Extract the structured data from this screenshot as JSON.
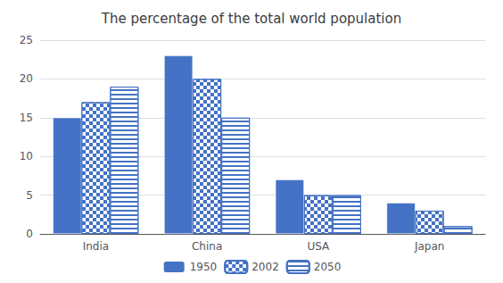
{
  "chart_data": {
    "type": "bar",
    "title": "The percentage of the total world population",
    "categories": [
      "India",
      "China",
      "USA",
      "Japan"
    ],
    "series": [
      {
        "name": "1950",
        "color": "#4472C4",
        "values": [
          15,
          23,
          7,
          4
        ]
      },
      {
        "name": "2002",
        "color": "#4472C4",
        "values": [
          17,
          20,
          5,
          3
        ]
      },
      {
        "name": "2050",
        "color": "#4472C4",
        "values": [
          19,
          15,
          5,
          1
        ]
      }
    ],
    "ylim": [
      0,
      25
    ],
    "yticks": [
      0,
      5,
      10,
      15,
      20,
      25
    ],
    "grid": true,
    "legend": "bottom"
  }
}
